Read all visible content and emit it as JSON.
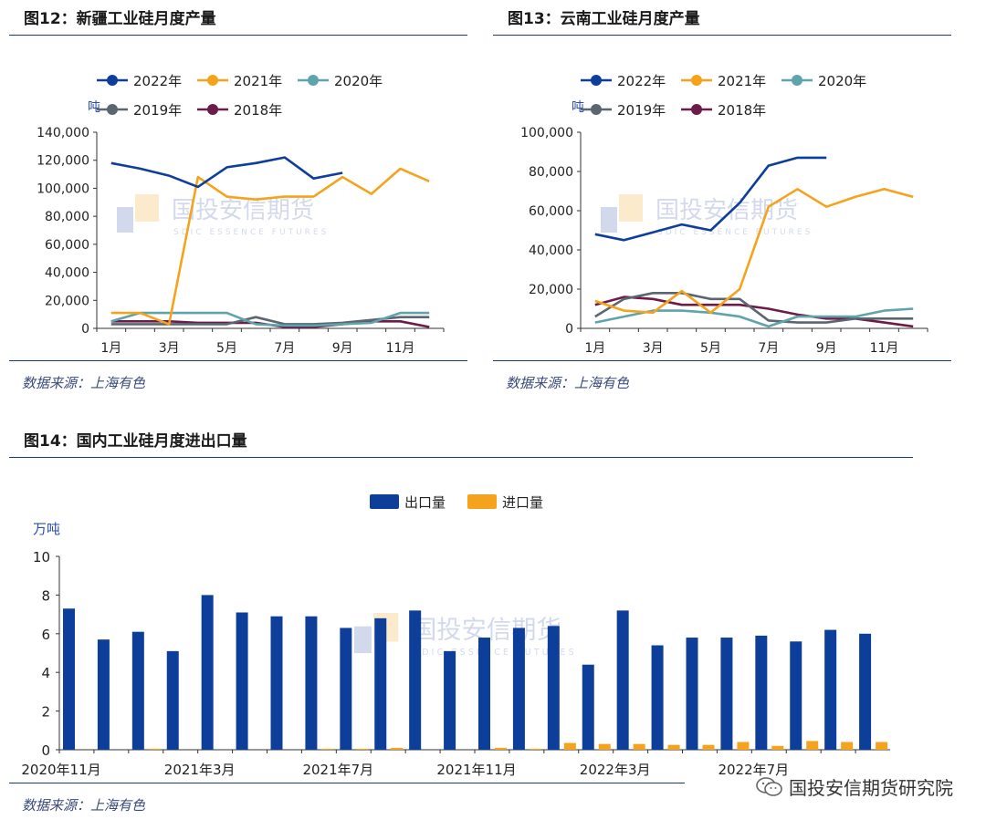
{
  "panels": {
    "fig12": {
      "title": "图12：新疆工业硅月度产量",
      "source": "数据来源：上海有色"
    },
    "fig13": {
      "title": "图13：云南工业硅月度产量",
      "source": "数据来源：上海有色"
    },
    "fig14": {
      "title": "图14：国内工业硅月度进出口量",
      "source": "数据来源：上海有色"
    }
  },
  "watermark": {
    "cn": "国投安信期货",
    "en": "SDIC ESSENCE FUTURES"
  },
  "footer": {
    "brand": "国投安信期货研究院"
  },
  "colors": {
    "2022": "#0d3f9a",
    "2021": "#f5a21c",
    "2020": "#5fa3ad",
    "2019": "#5b6670",
    "2018": "#6b1c48",
    "export": "#0d3f9a",
    "import": "#f5a21c",
    "axis": "#333333",
    "rule": "#1f3a7a"
  },
  "chart_data": [
    {
      "id": "xinjiang",
      "type": "line",
      "title": "图12：新疆工业硅月度产量",
      "ylabel": "吨",
      "ylim": [
        0,
        140000
      ],
      "yticks": [
        0,
        20000,
        40000,
        60000,
        80000,
        100000,
        120000,
        140000
      ],
      "ytick_labels": [
        "0",
        "20,000",
        "40,000",
        "60,000",
        "80,000",
        "100,000",
        "120,000",
        "140,000"
      ],
      "x": [
        1,
        2,
        3,
        4,
        5,
        6,
        7,
        8,
        9,
        10,
        11,
        12
      ],
      "xtick_labels": [
        "1月",
        "3月",
        "5月",
        "7月",
        "9月",
        "11月"
      ],
      "xtick_positions": [
        1,
        3,
        5,
        7,
        9,
        11
      ],
      "legend": "top",
      "series": [
        {
          "name": "2022年",
          "key": "2022",
          "values": [
            118000,
            114000,
            109000,
            101000,
            115000,
            118000,
            122000,
            107000,
            111000,
            null,
            null,
            null
          ]
        },
        {
          "name": "2021年",
          "key": "2021",
          "values": [
            11000,
            11000,
            3000,
            108000,
            94000,
            92000,
            94000,
            94000,
            108000,
            96000,
            114000,
            105000
          ]
        },
        {
          "name": "2020年",
          "key": "2020",
          "values": [
            5000,
            11000,
            11000,
            11000,
            11000,
            3000,
            2000,
            2000,
            3000,
            4000,
            11000,
            11000
          ]
        },
        {
          "name": "2019年",
          "key": "2019",
          "values": [
            3000,
            3000,
            3000,
            3000,
            3000,
            8000,
            3000,
            3000,
            4000,
            6000,
            8000,
            8000
          ]
        },
        {
          "name": "2018年",
          "key": "2018",
          "values": [
            5000,
            5000,
            5000,
            4000,
            4000,
            4000,
            1000,
            1000,
            3000,
            5000,
            5000,
            1000
          ]
        }
      ]
    },
    {
      "id": "yunnan",
      "type": "line",
      "title": "图13：云南工业硅月度产量",
      "ylabel": "吨",
      "ylim": [
        0,
        100000
      ],
      "yticks": [
        0,
        20000,
        40000,
        60000,
        80000,
        100000
      ],
      "ytick_labels": [
        "0",
        "20,000",
        "40,000",
        "60,000",
        "80,000",
        "100,000"
      ],
      "x": [
        1,
        2,
        3,
        4,
        5,
        6,
        7,
        8,
        9,
        10,
        11,
        12
      ],
      "xtick_labels": [
        "1月",
        "3月",
        "5月",
        "7月",
        "9月",
        "11月"
      ],
      "xtick_positions": [
        1,
        3,
        5,
        7,
        9,
        11
      ],
      "legend": "top",
      "series": [
        {
          "name": "2022年",
          "key": "2022",
          "values": [
            48000,
            45000,
            49000,
            53000,
            50000,
            64000,
            83000,
            87000,
            87000,
            null,
            null,
            null
          ]
        },
        {
          "name": "2021年",
          "key": "2021",
          "values": [
            14000,
            9000,
            8000,
            19000,
            8000,
            20000,
            62000,
            71000,
            62000,
            67000,
            71000,
            67000
          ]
        },
        {
          "name": "2020年",
          "key": "2020",
          "values": [
            3000,
            6000,
            9000,
            9000,
            8000,
            6000,
            1000,
            6000,
            6000,
            6000,
            9000,
            10000
          ]
        },
        {
          "name": "2019年",
          "key": "2019",
          "values": [
            6000,
            15000,
            18000,
            18000,
            15000,
            15000,
            4000,
            3000,
            3000,
            5000,
            5000,
            5000
          ]
        },
        {
          "name": "2018年",
          "key": "2018",
          "values": [
            12000,
            16000,
            15000,
            12000,
            12000,
            12000,
            10000,
            7000,
            5000,
            5000,
            3000,
            1000
          ]
        }
      ]
    },
    {
      "id": "trade",
      "type": "bar",
      "title": "图14：国内工业硅月度进出口量",
      "ylabel": "万吨",
      "ylim": [
        0,
        10
      ],
      "yticks": [
        0,
        2,
        4,
        6,
        8,
        10
      ],
      "ytick_labels": [
        "0",
        "2",
        "4",
        "6",
        "8",
        "10"
      ],
      "categories": [
        "2020-11",
        "2020-12",
        "2021-01",
        "2021-02",
        "2021-03",
        "2021-04",
        "2021-05",
        "2021-06",
        "2021-07",
        "2021-08",
        "2021-09",
        "2021-10",
        "2021-11",
        "2021-12",
        "2022-01",
        "2022-02",
        "2022-03",
        "2022-04",
        "2022-05",
        "2022-06",
        "2022-07",
        "2022-08",
        "2022-09",
        "2022-10"
      ],
      "xtick_labels": [
        "2020年11月",
        "2021年3月",
        "2021年7月",
        "2021年11月",
        "2022年3月",
        "2022年7月"
      ],
      "xtick_indices": [
        0,
        4,
        8,
        12,
        16,
        20
      ],
      "legend": "top",
      "series": [
        {
          "name": "出口量",
          "key": "export",
          "values": [
            7.3,
            5.7,
            6.1,
            5.1,
            8.0,
            7.1,
            6.9,
            6.9,
            6.3,
            6.8,
            7.2,
            5.1,
            5.8,
            6.3,
            6.4,
            4.4,
            7.2,
            5.4,
            5.8,
            5.8,
            5.9,
            5.6,
            6.2,
            6.0
          ]
        },
        {
          "name": "进口量",
          "key": "import",
          "values": [
            0.0,
            0.0,
            0.05,
            0.0,
            0.0,
            0.0,
            0.0,
            0.05,
            0.05,
            0.1,
            0.0,
            0.0,
            0.1,
            0.05,
            0.35,
            0.3,
            0.3,
            0.25,
            0.25,
            0.4,
            0.2,
            0.45,
            0.4,
            0.4
          ]
        }
      ]
    }
  ]
}
